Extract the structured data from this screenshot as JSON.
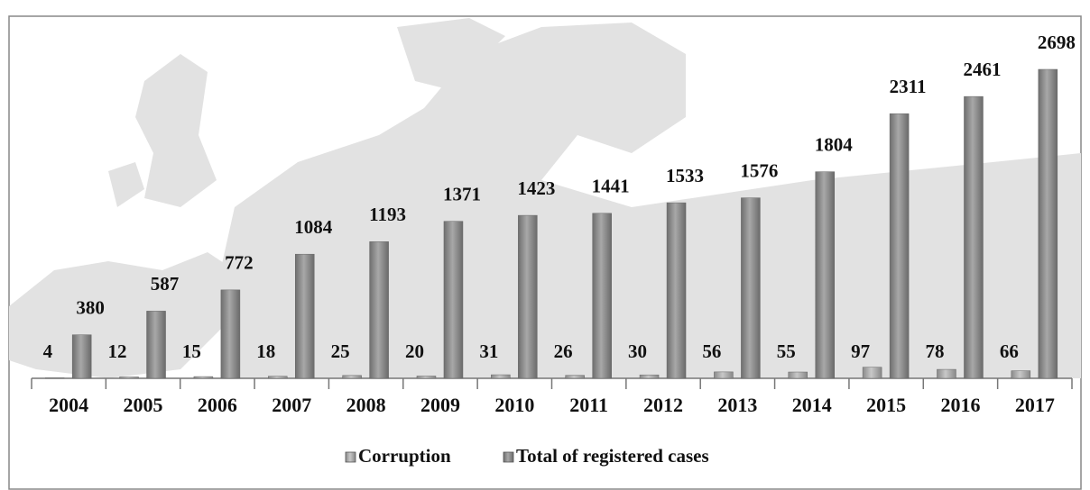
{
  "chart_data": {
    "type": "bar",
    "categories": [
      "2004",
      "2005",
      "2006",
      "2007",
      "2008",
      "2009",
      "2010",
      "2011",
      "2012",
      "2013",
      "2014",
      "2015",
      "2016",
      "2017"
    ],
    "series": [
      {
        "name": "Corruption",
        "color": "#a0a0a0",
        "values": [
          4,
          12,
          15,
          18,
          25,
          20,
          31,
          26,
          30,
          56,
          55,
          97,
          78,
          66
        ]
      },
      {
        "name": "Total of registered cases",
        "color": "#858585",
        "values": [
          380,
          587,
          772,
          1084,
          1193,
          1371,
          1423,
          1441,
          1533,
          1576,
          1804,
          2311,
          2461,
          2698
        ]
      }
    ],
    "legend": "bottom"
  }
}
